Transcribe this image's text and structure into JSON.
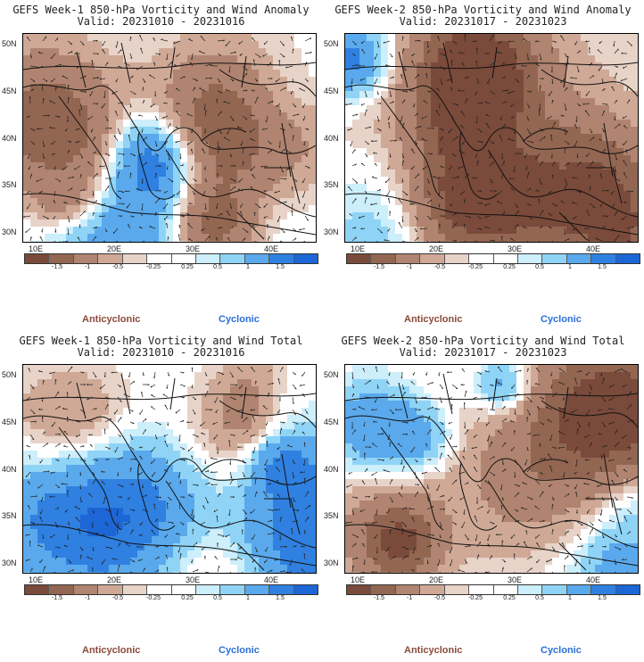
{
  "panels": [
    {
      "title1": "GEFS Week-1 850-hPa Vorticity and Wind Anomaly",
      "title2": "Valid: 20231010 - 20231016",
      "seed": 11,
      "bias": 0.0
    },
    {
      "title1": "GEFS Week-2 850-hPa Vorticity and Wind Anomaly",
      "title2": "Valid: 20231017 - 20231023",
      "seed": 23,
      "bias": -0.15
    },
    {
      "title1": "GEFS Week-1 850-hPa Vorticity and Wind Total",
      "title2": "Valid: 20231010 - 20231016",
      "seed": 37,
      "bias": 0.05
    },
    {
      "title1": "GEFS Week-2 850-hPa Vorticity and Wind Total",
      "title2": "Valid: 20231017 - 20231023",
      "seed": 51,
      "bias": -0.05
    }
  ],
  "lat_labels": [
    "50N",
    "45N",
    "40N",
    "35N",
    "30N"
  ],
  "lon_labels": [
    "10E",
    "20E",
    "30E",
    "40E"
  ],
  "colorbar": {
    "colors": [
      "#7a4a3a",
      "#936652",
      "#b08470",
      "#cfa996",
      "#e8d3c8",
      "#ffffff",
      "#ffffff",
      "#cdeefb",
      "#8fd4f6",
      "#5aa9ec",
      "#2f80e0",
      "#1d66d6"
    ],
    "ticks": [
      "-1.5",
      "-1",
      "-0.5",
      "-0.25",
      "0.25",
      "0.5",
      "1",
      "1.5"
    ]
  },
  "legend": {
    "anticyclonic": "Anticyclonic",
    "cyclonic": "Cyclonic"
  }
}
